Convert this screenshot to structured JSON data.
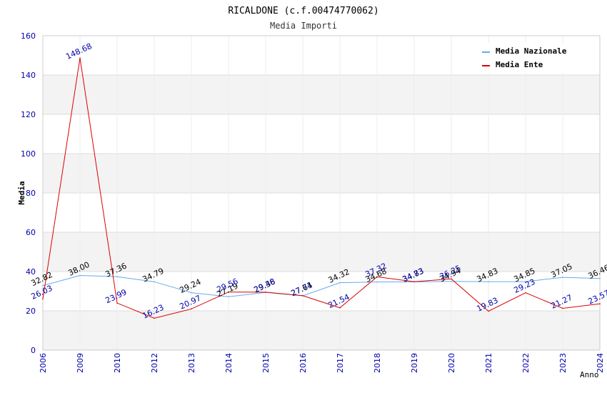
{
  "chart_data": {
    "type": "line",
    "title": "RICALDONE (c.f.00474770062)",
    "subtitle": "Media Importi",
    "xlabel": "Anno",
    "ylabel": "Media",
    "categories": [
      "2006",
      "2009",
      "2010",
      "2012",
      "2013",
      "2014",
      "2015",
      "2016",
      "2017",
      "2018",
      "2019",
      "2020",
      "2021",
      "2022",
      "2023",
      "2024"
    ],
    "ylim": [
      0,
      160
    ],
    "yticks": [
      0,
      20,
      40,
      60,
      80,
      100,
      120,
      140,
      160
    ],
    "grid": true,
    "legend_position": "top-right",
    "series": [
      {
        "name": "Media Nazionale",
        "color": "#66aaee",
        "label_color": "#000000",
        "values": [
          32.82,
          38.0,
          37.36,
          34.79,
          29.24,
          27.19,
          29.36,
          27.64,
          34.32,
          34.68,
          34.73,
          34.94,
          34.83,
          34.85,
          37.05,
          36.46
        ],
        "labels": [
          "32.82",
          "38.00",
          "37.36",
          "34.79",
          "29.24",
          "27.19",
          "29.36",
          "27.64",
          "34.32",
          "34.68",
          "34.73",
          "34.94",
          "34.83",
          "34.85",
          "37.05",
          "36.46"
        ]
      },
      {
        "name": "Media Ente",
        "color": "#dd0000",
        "label_color": "#0000aa",
        "values": [
          26.03,
          148.68,
          23.99,
          16.23,
          20.97,
          29.56,
          29.48,
          27.71,
          21.54,
          37.32,
          34.83,
          36.25,
          19.83,
          29.23,
          21.27,
          23.57
        ],
        "labels": [
          "26.03",
          "148.68",
          "23.99",
          "16.23",
          "20.97",
          "29.56",
          "29.48",
          "27.71",
          "21.54",
          "37.32",
          "34.83",
          "36.25",
          "19.83",
          "29.23",
          "21.27",
          "23.57"
        ]
      }
    ]
  }
}
